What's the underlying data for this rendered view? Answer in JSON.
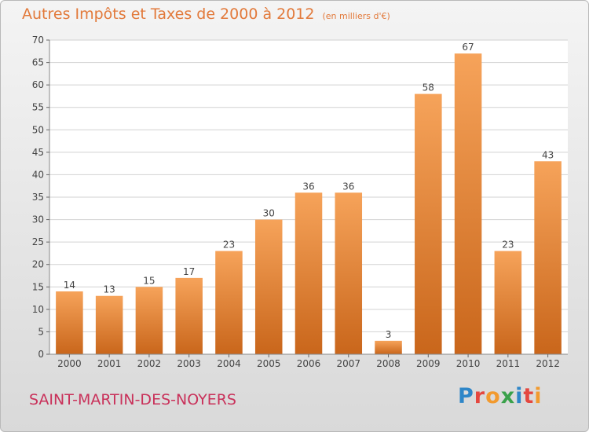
{
  "title": "Autres Impôts et Taxes de 2000 à 2012",
  "title_unit": "(en milliers d'€)",
  "place_name": "SAINT-MARTIN-DES-NOYERS",
  "logo_text": "Proxiti",
  "colors": {
    "title": "#e2793a",
    "place": "#c9315a",
    "bar_top": "#f6a35a",
    "bar_bottom": "#c9661b",
    "logo_letters": [
      "#2e86c8",
      "#e4473f",
      "#f29a2e",
      "#3aa14a",
      "#2e86c8",
      "#e4473f",
      "#f29a2e"
    ]
  },
  "chart_data": {
    "type": "bar",
    "title": "Autres Impôts et Taxes de 2000 à 2012",
    "subtitle": "(en milliers d'€)",
    "xlabel": "",
    "ylabel": "",
    "categories": [
      "2000",
      "2001",
      "2002",
      "2003",
      "2004",
      "2005",
      "2006",
      "2007",
      "2008",
      "2009",
      "2010",
      "2011",
      "2012"
    ],
    "values": [
      14,
      13,
      15,
      17,
      23,
      30,
      36,
      36,
      3,
      58,
      67,
      23,
      43
    ],
    "ylim": [
      0,
      70
    ],
    "yticks": [
      0,
      5,
      10,
      15,
      20,
      25,
      30,
      35,
      40,
      45,
      50,
      55,
      60,
      65,
      70
    ],
    "grid": true,
    "legend": "none"
  }
}
